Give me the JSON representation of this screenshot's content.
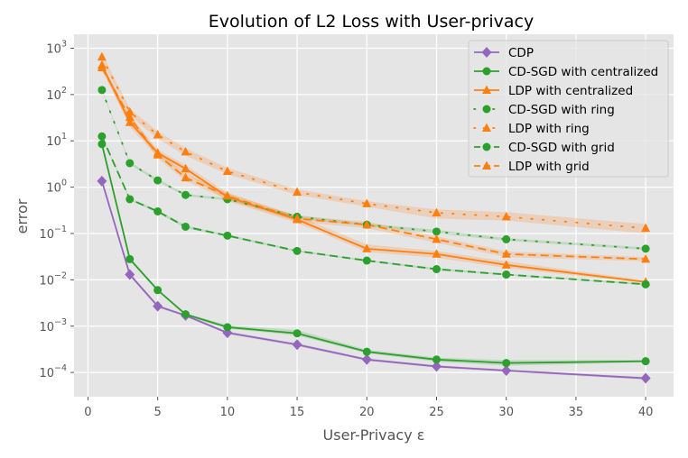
{
  "chart_data": {
    "type": "line",
    "title": "Evolution of L2 Loss with User-privacy",
    "xlabel": "User-Privacy ε",
    "ylabel": "error",
    "xlim": [
      -1,
      42
    ],
    "ylim": [
      3e-05,
      2000
    ],
    "yscale": "log",
    "grid": true,
    "legend_position": "top-right",
    "xticks": [
      0,
      5,
      10,
      15,
      20,
      25,
      30,
      35,
      40
    ],
    "xtick_labels": [
      "0",
      "5",
      "10",
      "15",
      "20",
      "25",
      "30",
      "35",
      "40"
    ],
    "yticks": [
      0.0001,
      0.001,
      0.01,
      0.1,
      1,
      10,
      100,
      1000
    ],
    "ytick_labels": [
      {
        "base": "10",
        "exp": "−4"
      },
      {
        "base": "10",
        "exp": "−3"
      },
      {
        "base": "10",
        "exp": "−2"
      },
      {
        "base": "10",
        "exp": "−1"
      },
      {
        "base": "10",
        "exp": "0"
      },
      {
        "base": "10",
        "exp": "1"
      },
      {
        "base": "10",
        "exp": "2"
      },
      {
        "base": "10",
        "exp": "3"
      }
    ],
    "x": [
      1,
      3,
      5,
      7,
      10,
      15,
      20,
      25,
      30,
      40
    ],
    "series": [
      {
        "name": "CDP",
        "color": "#9467bd",
        "marker": "diamond",
        "dash": "solid",
        "values": [
          1.35,
          0.013,
          0.0027,
          0.0017,
          0.00072,
          0.0004,
          0.00019,
          0.000135,
          0.00011,
          7.5e-05
        ],
        "band": [
          [
            1.25,
            1.45
          ],
          [
            0.0118,
            0.0142
          ],
          [
            0.0025,
            0.0029
          ],
          [
            0.0016,
            0.0018
          ],
          [
            0.00067,
            0.00077
          ],
          [
            0.00037,
            0.00043
          ],
          [
            0.000178,
            0.000202
          ],
          [
            0.000127,
            0.000143
          ],
          [
            0.000103,
            0.000117
          ],
          [
            7e-05,
            8e-05
          ]
        ]
      },
      {
        "name": "CD-SGD with centralized",
        "color": "#2ca02c",
        "marker": "circle",
        "dash": "solid",
        "values": [
          8.5,
          0.028,
          0.006,
          0.0018,
          0.00095,
          0.0007,
          0.00028,
          0.00019,
          0.00016,
          0.000175
        ],
        "band": [
          [
            8.0,
            9.0
          ],
          [
            0.026,
            0.03
          ],
          [
            0.0056,
            0.0064
          ],
          [
            0.0017,
            0.0019
          ],
          [
            0.00088,
            0.00105
          ],
          [
            0.00063,
            0.00082
          ],
          [
            0.00026,
            0.00031
          ],
          [
            0.00017,
            0.00021
          ],
          [
            0.00014,
            0.000185
          ],
          [
            0.000165,
            0.000185
          ]
        ]
      },
      {
        "name": "LDP with centralized",
        "color": "#ff7f0e",
        "marker": "triangle",
        "dash": "solid",
        "values": [
          430,
          25,
          5.5,
          2.5,
          0.62,
          0.2,
          0.047,
          0.036,
          0.021,
          0.009
        ],
        "band": [
          [
            350,
            520
          ],
          [
            20,
            32
          ],
          [
            4.5,
            6.5
          ],
          [
            2.0,
            3.0
          ],
          [
            0.5,
            0.75
          ],
          [
            0.17,
            0.24
          ],
          [
            0.04,
            0.058
          ],
          [
            0.03,
            0.042
          ],
          [
            0.018,
            0.025
          ],
          [
            0.0085,
            0.0098
          ]
        ]
      },
      {
        "name": "CD-SGD with ring",
        "color": "#2ca02c",
        "marker": "circle",
        "dash": "dotted",
        "values": [
          125,
          3.3,
          1.4,
          0.68,
          0.55,
          0.23,
          0.155,
          0.11,
          0.075,
          0.047
        ],
        "band": [
          [
            120,
            130
          ],
          [
            3.1,
            3.5
          ],
          [
            1.3,
            1.5
          ],
          [
            0.64,
            0.72
          ],
          [
            0.52,
            0.58
          ],
          [
            0.21,
            0.25
          ],
          [
            0.145,
            0.165
          ],
          [
            0.1,
            0.12
          ],
          [
            0.07,
            0.08
          ],
          [
            0.044,
            0.05
          ]
        ]
      },
      {
        "name": "LDP with ring",
        "color": "#ff7f0e",
        "marker": "triangle",
        "dash": "dotted",
        "values": [
          650,
          42,
          13.5,
          5.8,
          2.2,
          0.78,
          0.44,
          0.28,
          0.23,
          0.13
        ],
        "band": [
          [
            550,
            780
          ],
          [
            35,
            50
          ],
          [
            11,
            16
          ],
          [
            4.8,
            7.0
          ],
          [
            1.9,
            2.6
          ],
          [
            0.68,
            0.9
          ],
          [
            0.38,
            0.5
          ],
          [
            0.21,
            0.33
          ],
          [
            0.19,
            0.29
          ],
          [
            0.1,
            0.16
          ]
        ]
      },
      {
        "name": "CD-SGD with grid",
        "color": "#2ca02c",
        "marker": "circle",
        "dash": "dashed",
        "values": [
          12.5,
          0.55,
          0.3,
          0.14,
          0.09,
          0.042,
          0.026,
          0.017,
          0.013,
          0.008
        ],
        "band": [
          [
            12,
            13
          ],
          [
            0.52,
            0.58
          ],
          [
            0.28,
            0.32
          ],
          [
            0.13,
            0.15
          ],
          [
            0.085,
            0.095
          ],
          [
            0.04,
            0.044
          ],
          [
            0.025,
            0.027
          ],
          [
            0.016,
            0.018
          ],
          [
            0.0125,
            0.0135
          ],
          [
            0.0076,
            0.0084
          ]
        ]
      },
      {
        "name": "LDP with grid",
        "color": "#ff7f0e",
        "marker": "triangle",
        "dash": "dashed",
        "values": [
          380,
          32,
          5.0,
          1.6,
          0.65,
          0.21,
          0.155,
          0.075,
          0.036,
          0.028
        ],
        "band": [
          [
            320,
            440
          ],
          [
            27,
            38
          ],
          [
            4.2,
            6.0
          ],
          [
            1.35,
            1.9
          ],
          [
            0.55,
            0.76
          ],
          [
            0.18,
            0.24
          ],
          [
            0.13,
            0.18
          ],
          [
            0.063,
            0.087
          ],
          [
            0.031,
            0.041
          ],
          [
            0.025,
            0.031
          ]
        ]
      }
    ]
  }
}
